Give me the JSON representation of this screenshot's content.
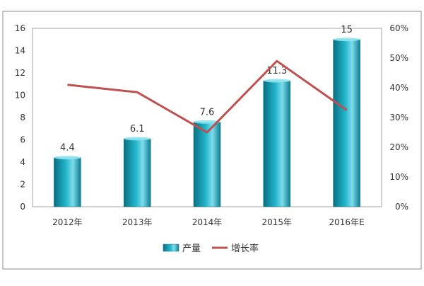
{
  "chart_data": {
    "type": "bar",
    "title": "",
    "categories": [
      "2012年",
      "2013年",
      "2014年",
      "2015年",
      "2016年E"
    ],
    "series": [
      {
        "name": "产量",
        "type": "bar",
        "axis": "left",
        "values": [
          4.4,
          6.1,
          7.6,
          11.3,
          15
        ],
        "data_labels": [
          "4.4",
          "6.1",
          "7.6",
          "11.3",
          "15"
        ]
      },
      {
        "name": "增长率",
        "type": "line",
        "axis": "right",
        "values": [
          0.41,
          0.385,
          0.25,
          0.49,
          0.325
        ]
      }
    ],
    "left_axis": {
      "min": 0,
      "max": 16,
      "ticks": [
        "0",
        "2",
        "4",
        "6",
        "8",
        "10",
        "12",
        "14",
        "16"
      ]
    },
    "right_axis": {
      "min": 0,
      "max": 0.6,
      "ticks": [
        "0%",
        "10%",
        "20%",
        "30%",
        "40%",
        "50%",
        "60%"
      ]
    },
    "grid": false,
    "legend_position": "bottom",
    "colors": {
      "bar": "#1aa3b8",
      "bar_dark": "#0b6f82",
      "bar_light": "#7fdcec",
      "line": "#c0504d",
      "axis": "#a6a6a6",
      "border": "#8c8c8c"
    }
  }
}
